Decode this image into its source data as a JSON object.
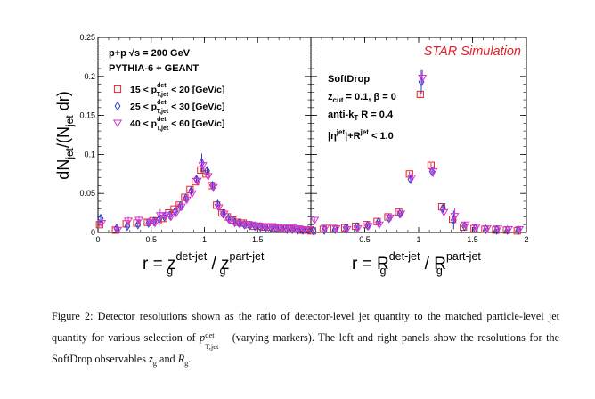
{
  "figure": {
    "ylabel": "dN_jet/(N_jet dr)",
    "ylabel_parts": {
      "a": "dN",
      "b": "jet",
      "c": "/(N",
      "d": "jet",
      "e": " dr)"
    },
    "star_label": "STAR Simulation",
    "left_annotations": {
      "line1_a": "p+p  ",
      "line1_b": "√s",
      "line1_c": " = 200 GeV",
      "line2": "PYTHIA-6 + GEANT"
    },
    "right_annotations": {
      "title": "SoftDrop",
      "zcut_a": "z",
      "zcut_b": "cut",
      "zcut_c": " = 0.1,  β = 0",
      "antikt_a": "anti-k",
      "antikt_b": "T",
      "antikt_c": " R = 0.4",
      "eta_a": "|η",
      "eta_b": "jet",
      "eta_c": "|+R",
      "eta_d": "jet",
      "eta_e": " < 1.0"
    },
    "xlabel_left": {
      "a": "r = z",
      "b": "det-jet",
      "c": "g",
      "d": " / z",
      "e": "part-jet",
      "f": "g"
    },
    "xlabel_right": {
      "a": "r = R",
      "b": "det-jet",
      "c": "g",
      "d": " / R",
      "e": "part-jet",
      "f": "g"
    },
    "colors": {
      "series1": "#e8252b",
      "series2": "#2a3fcc",
      "series3": "#d333d8"
    }
  },
  "chart_data": [
    {
      "type": "scatter",
      "panel": "left",
      "xlabel": "r = z_g^det-jet / z_g^part-jet",
      "ylabel": "dN_jet/(N_jet dr)",
      "xlim": [
        0,
        2
      ],
      "ylim": [
        0,
        0.25
      ],
      "x_ticks": [
        0,
        0.5,
        1,
        1.5
      ],
      "x_tick_labels": [
        "0",
        "0.5",
        "1",
        "1.5"
      ],
      "y_ticks": [
        0,
        0.05,
        0.1,
        0.15,
        0.2,
        0.25
      ],
      "y_tick_labels": [
        "0",
        "0.05",
        "0.1",
        "0.15",
        "0.2",
        "0.25"
      ],
      "x": [
        0.025,
        0.175,
        0.275,
        0.375,
        0.475,
        0.525,
        0.575,
        0.625,
        0.675,
        0.725,
        0.775,
        0.825,
        0.875,
        0.925,
        0.975,
        1.025,
        1.075,
        1.125,
        1.175,
        1.225,
        1.275,
        1.325,
        1.375,
        1.425,
        1.475,
        1.525,
        1.575,
        1.625,
        1.675,
        1.725,
        1.775,
        1.825,
        1.875,
        1.925,
        1.975
      ],
      "legend": [
        {
          "a": "15 < p",
          "b": "det",
          "c": "T,jet",
          "d": " < 20 [GeV/c]",
          "marker": "square",
          "color": "#e8252b"
        },
        {
          "a": "25 < p",
          "b": "det",
          "c": "T,jet",
          "d": " < 30 [GeV/c]",
          "marker": "diamond",
          "color": "#2a3fcc"
        },
        {
          "a": "40 < p",
          "b": "det",
          "c": "T,jet",
          "d": " < 60 [GeV/c]",
          "marker": "triangle-down",
          "color": "#d333d8"
        }
      ],
      "series": [
        {
          "marker": "square",
          "color": "#e8252b",
          "y": [
            0.01,
            0.003,
            0.011,
            0.012,
            0.013,
            0.015,
            0.015,
            0.018,
            0.025,
            0.03,
            0.035,
            0.045,
            0.055,
            0.065,
            0.08,
            0.075,
            0.06,
            0.035,
            0.025,
            0.02,
            0.016,
            0.013,
            0.012,
            0.01,
            0.008,
            0.008,
            0.007,
            0.007,
            0.006,
            0.005,
            0.005,
            0.004,
            0.004,
            0.003,
            0.003
          ],
          "err": [
            0.003,
            0.002,
            0.002,
            0.002,
            0.002,
            0.002,
            0.002,
            0.002,
            0.002,
            0.002,
            0.002,
            0.002,
            0.002,
            0.002,
            0.003,
            0.003,
            0.002,
            0.002,
            0.002,
            0.002,
            0.002,
            0.002,
            0.002,
            0.002,
            0.002,
            0.002,
            0.002,
            0.002,
            0.002,
            0.002,
            0.002,
            0.002,
            0.002,
            0.002,
            0.002
          ]
        },
        {
          "marker": "diamond",
          "color": "#2a3fcc",
          "y": [
            0.018,
            0.005,
            0.008,
            0.01,
            0.012,
            0.014,
            0.017,
            0.02,
            0.022,
            0.027,
            0.034,
            0.044,
            0.053,
            0.068,
            0.089,
            0.079,
            0.06,
            0.036,
            0.024,
            0.018,
            0.015,
            0.012,
            0.01,
            0.009,
            0.008,
            0.007,
            0.006,
            0.006,
            0.005,
            0.005,
            0.004,
            0.004,
            0.003,
            0.003,
            0.003
          ],
          "err": [
            0.004,
            0.003,
            0.003,
            0.003,
            0.003,
            0.003,
            0.009,
            0.003,
            0.003,
            0.003,
            0.003,
            0.003,
            0.004,
            0.004,
            0.012,
            0.005,
            0.004,
            0.003,
            0.003,
            0.003,
            0.003,
            0.003,
            0.003,
            0.003,
            0.003,
            0.003,
            0.003,
            0.003,
            0.003,
            0.003,
            0.003,
            0.003,
            0.003,
            0.003,
            0.003
          ]
        },
        {
          "marker": "triangle-down",
          "color": "#d333d8",
          "y": [
            0.012,
            0.003,
            0.015,
            0.016,
            0.013,
            0.012,
            0.022,
            0.022,
            0.02,
            0.025,
            0.033,
            0.042,
            0.05,
            0.066,
            0.086,
            0.072,
            0.058,
            0.032,
            0.024,
            0.016,
            0.012,
            0.011,
            0.01,
            0.01,
            0.009,
            0.008,
            0.007,
            0.008,
            0.006,
            0.006,
            0.006,
            0.006,
            0.005,
            0.004,
            0.004
          ],
          "err": [
            0.005,
            0.003,
            0.005,
            0.005,
            0.004,
            0.004,
            0.008,
            0.005,
            0.005,
            0.005,
            0.005,
            0.005,
            0.006,
            0.006,
            0.008,
            0.006,
            0.006,
            0.005,
            0.005,
            0.004,
            0.004,
            0.004,
            0.004,
            0.004,
            0.004,
            0.004,
            0.004,
            0.004,
            0.004,
            0.004,
            0.004,
            0.004,
            0.004,
            0.004,
            0.004
          ]
        }
      ]
    },
    {
      "type": "scatter",
      "panel": "right",
      "xlabel": "r = R_g^det-jet / R_g^part-jet",
      "xlim": [
        0,
        2
      ],
      "ylim": [
        0,
        0.25
      ],
      "x_ticks": [
        0,
        0.5,
        1,
        1.5,
        2
      ],
      "x_tick_labels": [
        "",
        "0.5",
        "1",
        "1.5",
        "2"
      ],
      "x": [
        0.025,
        0.125,
        0.225,
        0.325,
        0.425,
        0.525,
        0.625,
        0.725,
        0.825,
        0.925,
        1.025,
        1.125,
        1.225,
        1.325,
        1.425,
        1.525,
        1.625,
        1.725,
        1.825,
        1.925
      ],
      "series": [
        {
          "marker": "square",
          "color": "#e8252b",
          "y": [
            0.002,
            0.004,
            0.005,
            0.006,
            0.008,
            0.01,
            0.014,
            0.02,
            0.026,
            0.075,
            0.177,
            0.086,
            0.033,
            0.017,
            0.007,
            0.005,
            0.004,
            0.003,
            0.003,
            0.002
          ],
          "err": [
            0.002,
            0.002,
            0.002,
            0.002,
            0.002,
            0.002,
            0.002,
            0.002,
            0.002,
            0.003,
            0.004,
            0.003,
            0.002,
            0.002,
            0.002,
            0.002,
            0.002,
            0.002,
            0.002,
            0.002
          ]
        },
        {
          "marker": "diamond",
          "color": "#2a3fcc",
          "y": [
            0.002,
            0.003,
            0.004,
            0.006,
            0.007,
            0.009,
            0.013,
            0.018,
            0.024,
            0.068,
            0.193,
            0.078,
            0.031,
            0.016,
            0.008,
            0.005,
            0.004,
            0.003,
            0.003,
            0.003
          ],
          "err": [
            0.002,
            0.002,
            0.002,
            0.002,
            0.002,
            0.002,
            0.002,
            0.002,
            0.002,
            0.004,
            0.015,
            0.006,
            0.004,
            0.012,
            0.002,
            0.002,
            0.002,
            0.002,
            0.002,
            0.002
          ]
        },
        {
          "marker": "triangle-down",
          "color": "#d333d8",
          "y": [
            0.016,
            0.006,
            0.005,
            0.004,
            0.005,
            0.008,
            0.01,
            0.019,
            0.024,
            0.07,
            0.198,
            0.078,
            0.026,
            0.021,
            0.01,
            0.007,
            0.005,
            0.005,
            0.004,
            0.004
          ],
          "err": [
            0.004,
            0.003,
            0.003,
            0.003,
            0.003,
            0.003,
            0.003,
            0.003,
            0.003,
            0.006,
            0.01,
            0.007,
            0.005,
            0.01,
            0.004,
            0.004,
            0.004,
            0.004,
            0.004,
            0.004
          ]
        }
      ]
    }
  ],
  "caption": {
    "part1": "Figure 2: Detector resolutions shown as the ratio of detector-level jet quantity to the matched particle-level jet quantity for various selection of ",
    "p": "p",
    "p_sup": "det",
    "p_sub": "T,jet",
    "part2": " (varying markers). The left and right panels show the resolutions for the SoftDrop observables ",
    "zg": "z",
    "zg_sub": "g",
    "and": " and ",
    "rg": "R",
    "rg_sub": "g",
    "end": "."
  }
}
